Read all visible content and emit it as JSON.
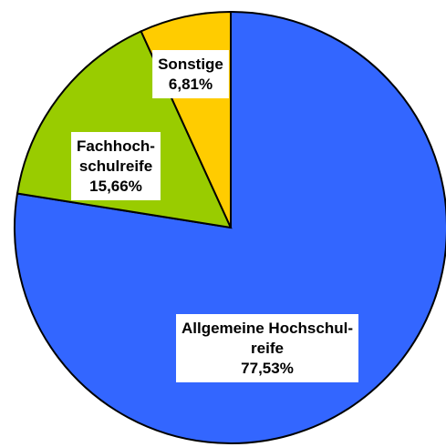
{
  "chart_data": {
    "type": "pie",
    "categories": [
      "Allgemeine Hochschul-reife",
      "Fachhoch-schulreife",
      "Sonstige"
    ],
    "values": [
      77.53,
      15.66,
      6.81
    ],
    "value_labels": [
      "77,53%",
      "15,66%",
      "6,81%"
    ],
    "colors": [
      "#3366ff",
      "#99cc00",
      "#ffcc00"
    ]
  }
}
